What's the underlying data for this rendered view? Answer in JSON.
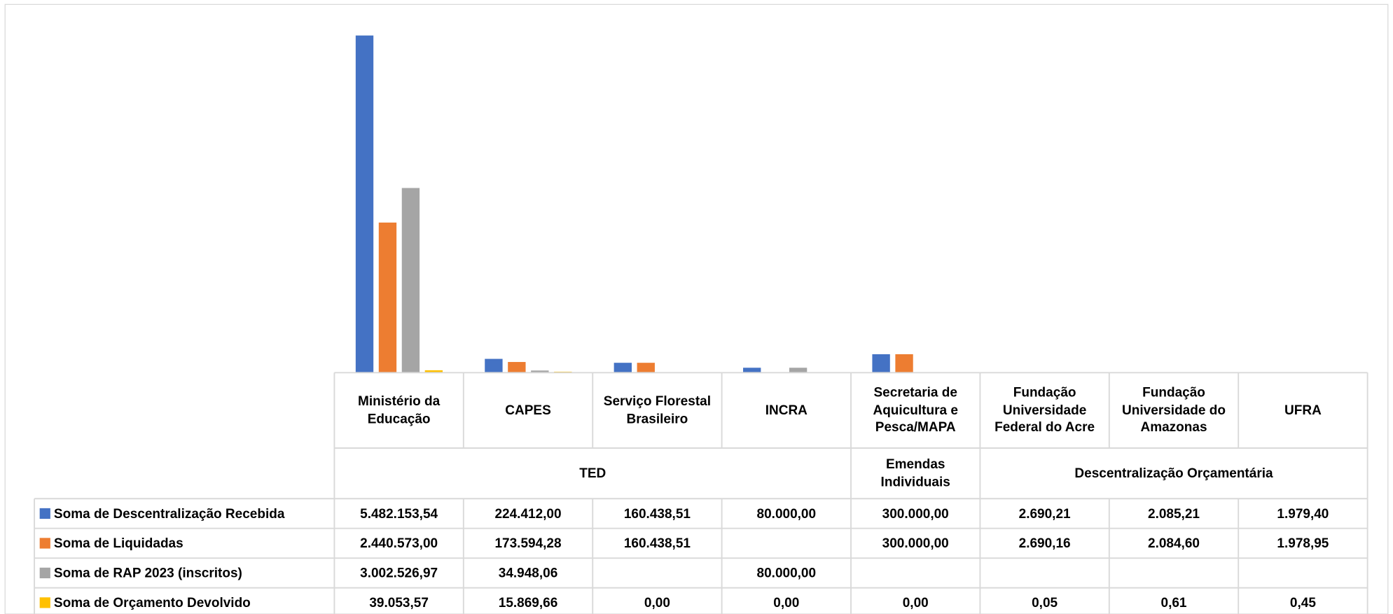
{
  "chart_data": {
    "type": "bar",
    "categories": [
      "Ministério da Educação",
      "CAPES",
      "Serviço Florestal Brasileiro",
      "INCRA",
      "Secretaria de Aquicultura e Pesca/MAPA",
      "Fundação Universidade Federal do Acre",
      "Fundação Universidade do Amazonas",
      "UFRA"
    ],
    "category_groups": [
      "TED",
      "TED",
      "TED",
      "TED",
      "Emendas Individuais",
      "Descentralização Orçamentária",
      "Descentralização Orçamentária",
      "Descentralização Orçamentária"
    ],
    "series": [
      {
        "name": "Soma de Descentralização Recebida",
        "color": "#4472c4",
        "values": [
          5482153.54,
          224412.0,
          160438.51,
          80000.0,
          300000.0,
          2690.21,
          2085.21,
          1979.4
        ],
        "value_labels": [
          "5.482.153,54",
          "224.412,00",
          "160.438,51",
          "80.000,00",
          "300.000,00",
          "2.690,21",
          "2.085,21",
          "1.979,40"
        ]
      },
      {
        "name": "Soma de Liquidadas",
        "color": "#ed7d31",
        "values": [
          2440573.0,
          173594.28,
          160438.51,
          null,
          300000.0,
          2690.16,
          2084.6,
          1978.95
        ],
        "value_labels": [
          "2.440.573,00",
          "173.594,28",
          "160.438,51",
          null,
          "300.000,00",
          "2.690,16",
          "2.084,60",
          "1.978,95"
        ]
      },
      {
        "name": "Soma de RAP 2023 (inscritos)",
        "color": "#a5a5a5",
        "values": [
          3002526.97,
          34948.06,
          null,
          80000.0,
          null,
          null,
          null,
          null
        ],
        "value_labels": [
          "3.002.526,97",
          "34.948,06",
          null,
          "80.000,00",
          null,
          null,
          null,
          null
        ]
      },
      {
        "name": "Soma de Orçamento Devolvido",
        "color": "#ffc000",
        "values": [
          39053.57,
          15869.66,
          0.0,
          0.0,
          0.0,
          0.05,
          0.61,
          0.45
        ],
        "value_labels": [
          "39.053,57",
          "15.869,66",
          "0,00",
          "0,00",
          "0,00",
          "0,05",
          "0,61",
          "0,45"
        ]
      }
    ]
  }
}
